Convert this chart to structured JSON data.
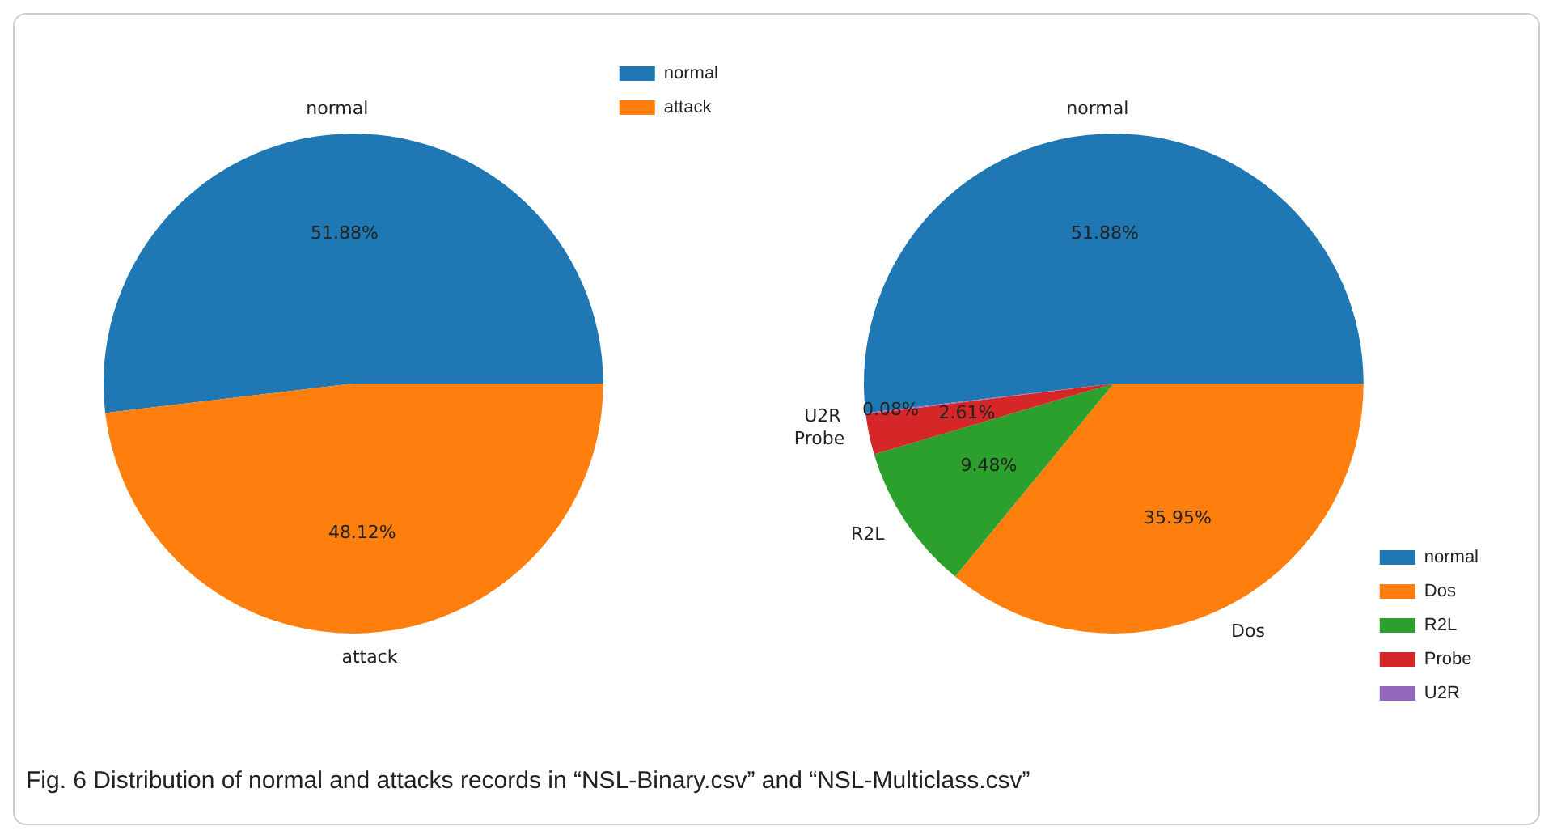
{
  "chart_data": [
    {
      "type": "pie",
      "categories": [
        "normal",
        "attack"
      ],
      "values": [
        51.88,
        48.12
      ],
      "colors": [
        "#1f77b4",
        "#ff7f0e"
      ],
      "value_labels": [
        "51.88%",
        "48.12%"
      ],
      "legend": "top right",
      "annotations": [
        "Fig. 6  Distribution of normal and attacks records in “NSL-Binary.csv” and “NSL-Multiclass.csv”"
      ]
    },
    {
      "type": "pie",
      "categories": [
        "normal",
        "Dos",
        "R2L",
        "Probe",
        "U2R"
      ],
      "values": [
        51.88,
        35.95,
        9.48,
        2.61,
        0.08
      ],
      "colors": [
        "#1f77b4",
        "#ff7f0e",
        "#2ca02c",
        "#d62728",
        "#9467bd"
      ],
      "value_labels": [
        "51.88%",
        "35.95%",
        "9.48%",
        "2.61%",
        "0.08%"
      ],
      "legend": "bottom right"
    }
  ]
}
